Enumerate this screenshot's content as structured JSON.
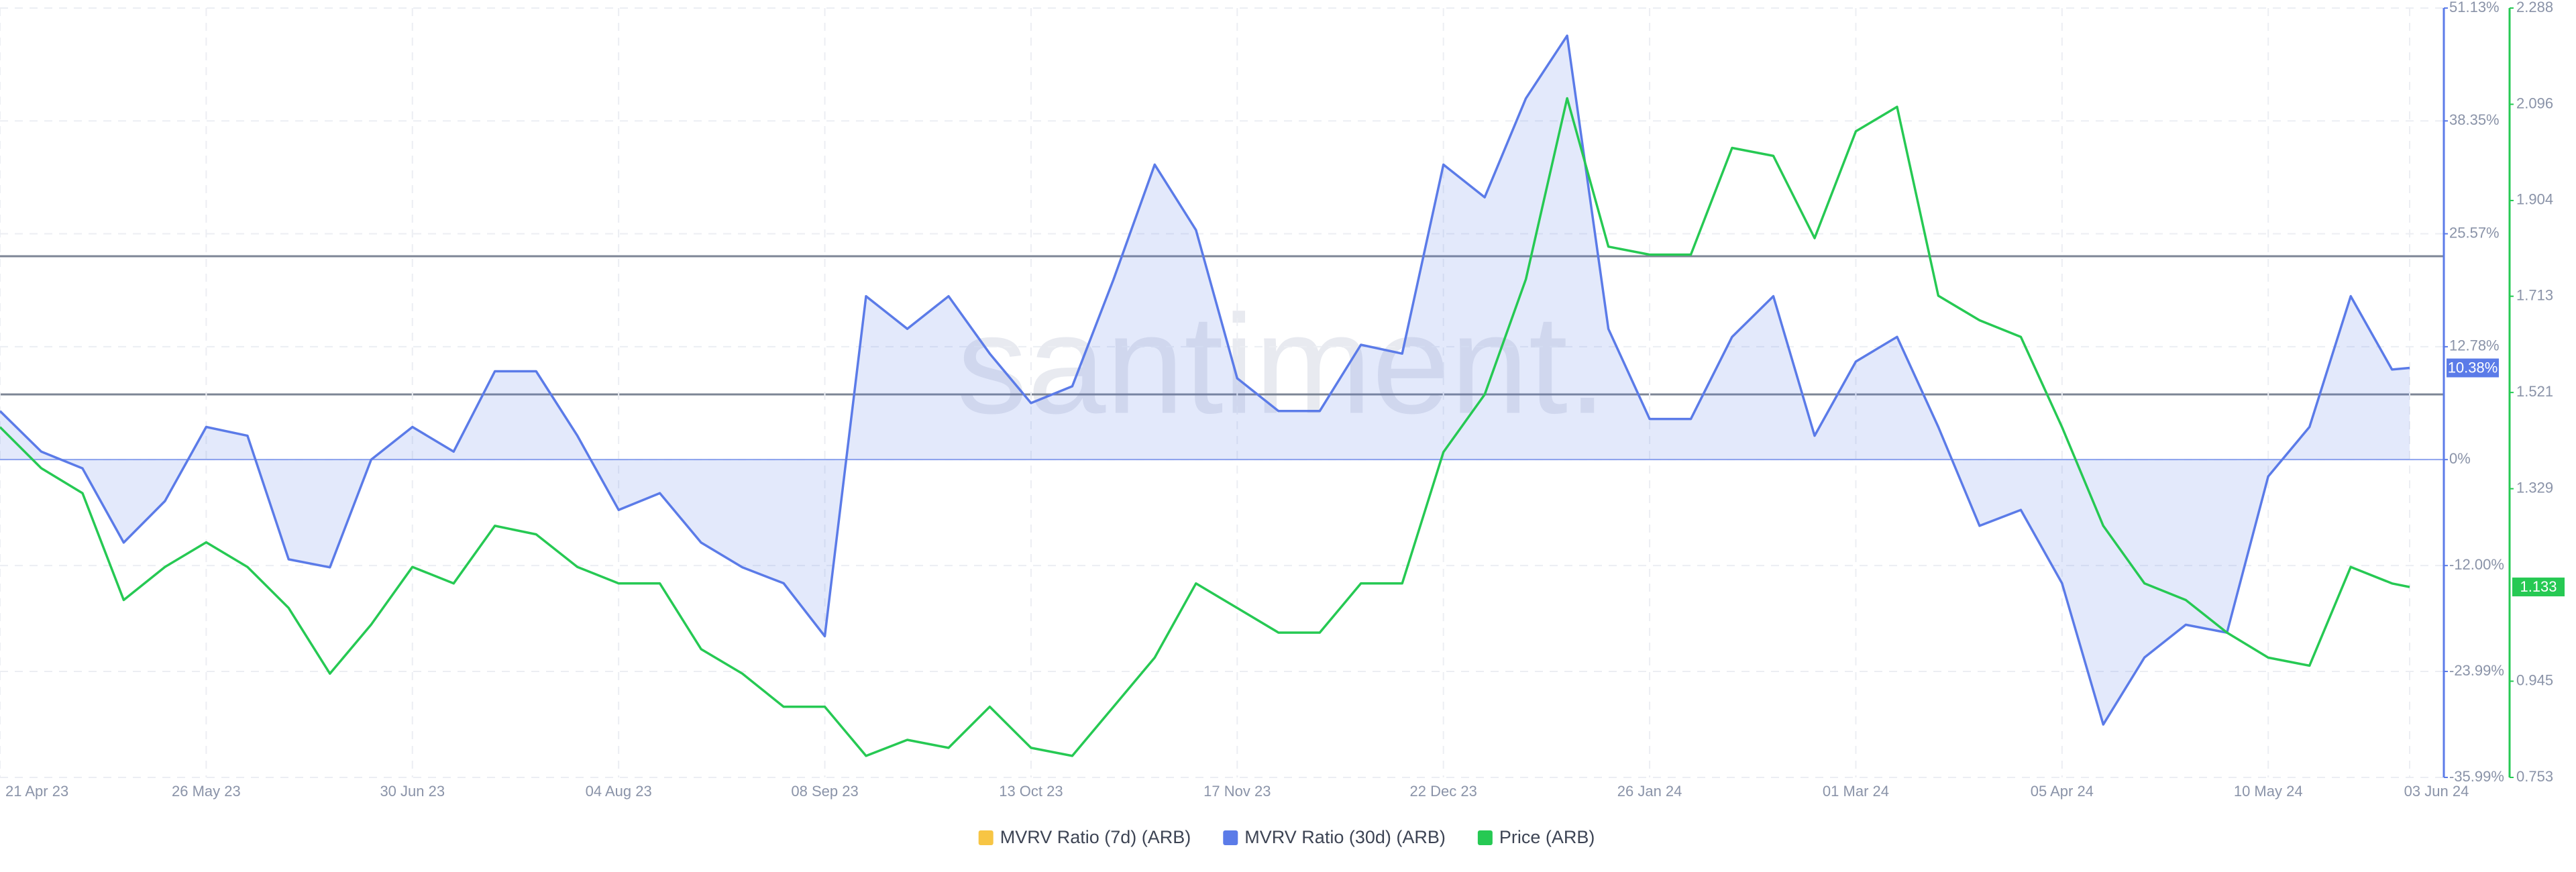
{
  "chart_data": {
    "type": "line",
    "watermark": "santiment.",
    "x": [
      "21 Apr 23",
      "28 Apr 23",
      "05 May 23",
      "12 May 23",
      "19 May 23",
      "26 May 23",
      "02 Jun 23",
      "09 Jun 23",
      "16 Jun 23",
      "23 Jun 23",
      "30 Jun 23",
      "07 Jul 23",
      "14 Jul 23",
      "21 Jul 23",
      "28 Jul 23",
      "04 Aug 23",
      "11 Aug 23",
      "18 Aug 23",
      "25 Aug 23",
      "01 Sep 23",
      "08 Sep 23",
      "15 Sep 23",
      "22 Sep 23",
      "29 Sep 23",
      "06 Oct 23",
      "13 Oct 23",
      "20 Oct 23",
      "27 Oct 23",
      "03 Nov 23",
      "10 Nov 23",
      "17 Nov 23",
      "24 Nov 23",
      "01 Dec 23",
      "08 Dec 23",
      "15 Dec 23",
      "22 Dec 23",
      "29 Dec 23",
      "05 Jan 24",
      "12 Jan 24",
      "19 Jan 24",
      "26 Jan 24",
      "02 Feb 24",
      "09 Feb 24",
      "16 Feb 24",
      "23 Feb 24",
      "01 Mar 24",
      "08 Mar 24",
      "15 Mar 24",
      "22 Mar 24",
      "29 Mar 24",
      "05 Apr 24",
      "12 Apr 24",
      "19 Apr 24",
      "26 Apr 24",
      "03 May 24",
      "10 May 24",
      "17 May 24",
      "24 May 24",
      "31 May 24",
      "03 Jun 24"
    ],
    "xticks": [
      "21 Apr 23",
      "26 May 23",
      "30 Jun 23",
      "04 Aug 23",
      "08 Sep 23",
      "13 Oct 23",
      "17 Nov 23",
      "22 Dec 23",
      "26 Jan 24",
      "01 Mar 24",
      "05 Apr 24",
      "10 May 24",
      "03 Jun 24"
    ],
    "ylim": [
      -35.99,
      51.13
    ],
    "yticks": [
      {
        "value": -35.99,
        "label": "-35.99%"
      },
      {
        "value": -23.99,
        "label": "-23.99%"
      },
      {
        "value": -12.0,
        "label": "-12.00%"
      },
      {
        "value": 0,
        "label": "0%"
      },
      {
        "value": 12.78,
        "label": "12.78%"
      },
      {
        "value": 25.57,
        "label": "25.57%"
      },
      {
        "value": 38.35,
        "label": "38.35%"
      },
      {
        "value": 51.13,
        "label": "51.13%"
      }
    ],
    "y2lim": [
      0.753,
      2.288
    ],
    "y2ticks": [
      0.753,
      0.945,
      1.329,
      1.521,
      1.713,
      1.904,
      2.096,
      2.288
    ],
    "grid": true,
    "legend": "bottom",
    "series": [
      {
        "name": "MVRV Ratio (7d) (ARB)",
        "color": "#f7c544",
        "axis": "y",
        "values": [
          null,
          null,
          null,
          null,
          null,
          null,
          null,
          null,
          null,
          null,
          null,
          null,
          null,
          null,
          null,
          null,
          null,
          null,
          null,
          null,
          null,
          null,
          null,
          null,
          null,
          null,
          null,
          null,
          null,
          null,
          null,
          null,
          null,
          null,
          null,
          null,
          null,
          null,
          null,
          null,
          null,
          null,
          null,
          null,
          null,
          null,
          null,
          null,
          null,
          null,
          null,
          null,
          null,
          null,
          null,
          null,
          null,
          null,
          null,
          null
        ]
      },
      {
        "name": "MVRV Ratio (30d) (ARB)",
        "color": "#5b7be8",
        "axis": "y",
        "last_label": "10.38%",
        "values": [
          5.5,
          0.9,
          -1,
          -9.4,
          -4.7,
          3.7,
          2.7,
          -11.3,
          -12.2,
          0,
          3.7,
          0.9,
          10,
          10,
          2.7,
          -5.7,
          -3.8,
          -9.4,
          -12.2,
          -14,
          -20,
          18.5,
          14.8,
          18.5,
          12,
          6.4,
          8.3,
          20.4,
          33.4,
          26,
          9.2,
          5.5,
          5.5,
          13,
          12,
          33.4,
          29.7,
          40.9,
          48,
          14.8,
          4.6,
          4.6,
          13.9,
          18.5,
          2.7,
          11.1,
          13.9,
          3.7,
          -7.5,
          -5.7,
          -14,
          -30,
          -22.4,
          -18.7,
          -19.6,
          -1.9,
          3.7,
          18.5,
          10.2,
          10.38
        ]
      },
      {
        "name": "Price (ARB)",
        "color": "#26c953",
        "axis": "y2",
        "last_label": "1.133",
        "values": [
          1.452,
          1.37,
          1.32,
          1.107,
          1.173,
          1.222,
          1.173,
          1.091,
          0.96,
          1.058,
          1.173,
          1.14,
          1.255,
          1.238,
          1.173,
          1.14,
          1.14,
          1.009,
          0.96,
          0.894,
          0.894,
          0.796,
          0.828,
          0.812,
          0.894,
          0.812,
          0.796,
          0.894,
          0.992,
          1.14,
          1.091,
          1.042,
          1.042,
          1.14,
          1.14,
          1.402,
          1.517,
          1.747,
          2.108,
          1.812,
          1.796,
          1.796,
          2.009,
          1.993,
          1.829,
          2.042,
          2.091,
          1.714,
          1.665,
          1.632,
          1.452,
          1.255,
          1.14,
          1.107,
          1.042,
          0.992,
          0.976,
          1.173,
          1.14,
          1.133
        ]
      }
    ]
  }
}
